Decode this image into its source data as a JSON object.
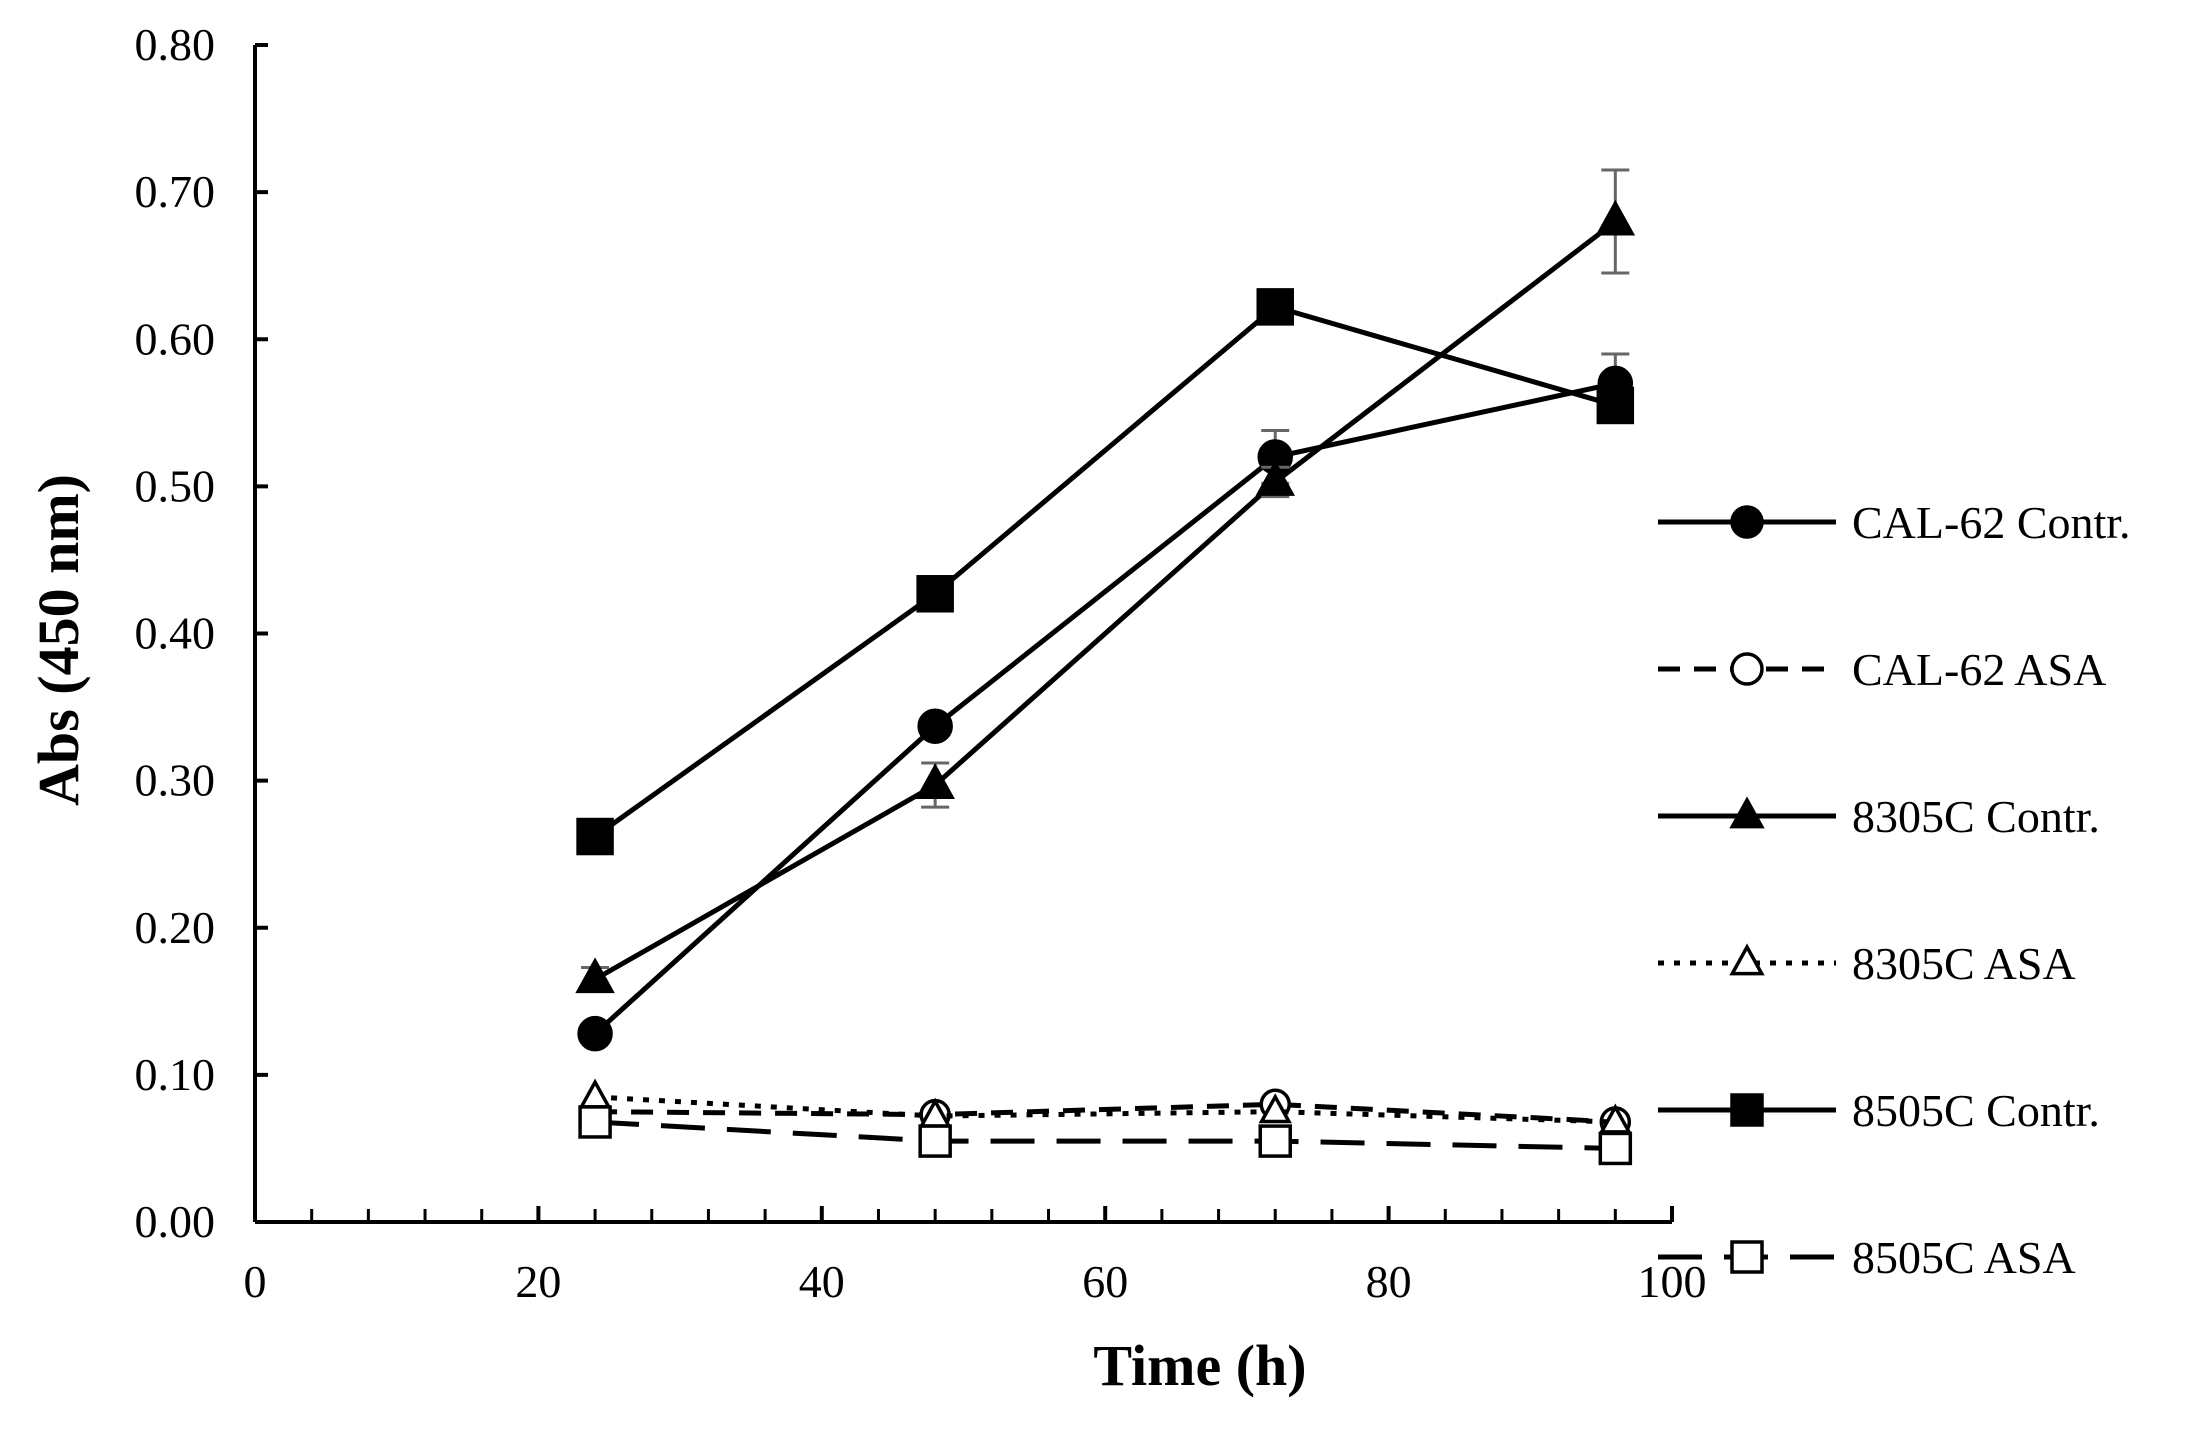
{
  "chart_data": {
    "type": "line",
    "title": "",
    "xlabel": "Time (h)",
    "ylabel": "Abs (450 nm)",
    "xlim": [
      0,
      100
    ],
    "ylim": [
      0,
      0.8
    ],
    "x_ticks": [
      0,
      20,
      40,
      60,
      80,
      100
    ],
    "x_tick_labels": [
      "0",
      "20",
      "40",
      "60",
      "80",
      "100"
    ],
    "y_ticks": [
      0,
      0.1,
      0.2,
      0.3,
      0.4,
      0.5,
      0.6,
      0.7,
      0.8
    ],
    "y_tick_labels": [
      "0.00",
      "0.10",
      "0.20",
      "0.30",
      "0.40",
      "0.50",
      "0.60",
      "0.70",
      "0.80"
    ],
    "x_minor_step": 4,
    "grid": false,
    "legend_position": "right",
    "x": [
      24,
      48,
      72,
      96
    ],
    "series": [
      {
        "name": "CAL-62 Contr.",
        "values": [
          0.128,
          0.337,
          0.52,
          0.57
        ],
        "errors": [
          0.005,
          0.006,
          0.018,
          0.02
        ],
        "line": "solid",
        "marker": "circle",
        "fill": "filled"
      },
      {
        "name": "CAL-62 ASA",
        "values": [
          0.075,
          0.073,
          0.08,
          0.068
        ],
        "errors": [
          0,
          0,
          0,
          0
        ],
        "line": "dashed",
        "marker": "circle",
        "fill": "open"
      },
      {
        "name": "8305C Contr.",
        "values": [
          0.165,
          0.297,
          0.503,
          0.68
        ],
        "errors": [
          0.008,
          0.015,
          0.01,
          0.035
        ],
        "line": "solid",
        "marker": "triangle",
        "fill": "filled"
      },
      {
        "name": "8305C ASA",
        "values": [
          0.085,
          0.072,
          0.075,
          0.068
        ],
        "errors": [
          0,
          0,
          0,
          0
        ],
        "line": "dotted",
        "marker": "triangle",
        "fill": "open"
      },
      {
        "name": "8505C Contr.",
        "values": [
          0.262,
          0.427,
          0.622,
          0.555
        ],
        "errors": [
          0.005,
          0.005,
          0.008,
          0.01
        ],
        "line": "solid",
        "marker": "square",
        "fill": "filled"
      },
      {
        "name": "8505C ASA",
        "values": [
          0.068,
          0.055,
          0.055,
          0.05
        ],
        "errors": [
          0,
          0,
          0,
          0
        ],
        "line": "longdash",
        "marker": "square",
        "fill": "open"
      }
    ],
    "colors": {
      "line": "#000000",
      "errorbar": "#666666",
      "axis": "#000000",
      "background": "#ffffff"
    }
  }
}
